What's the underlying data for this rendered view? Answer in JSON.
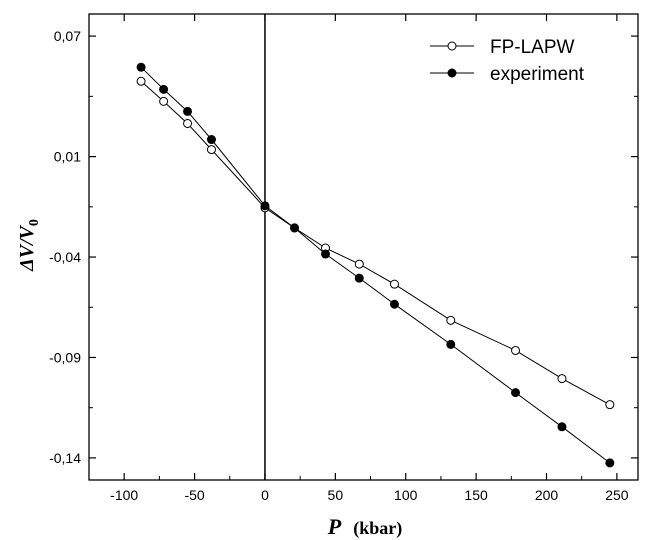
{
  "chart_data": {
    "type": "line",
    "title": "",
    "xlabel": "P",
    "xlabel_unit": "(kbar)",
    "ylabel": "ΔV/V",
    "ylabel_sub": "0",
    "xlim": [
      -125,
      265
    ],
    "ylim": [
      -0.151,
      0.081
    ],
    "x_ticks": [
      -100,
      -50,
      0,
      50,
      100,
      150,
      200,
      250
    ],
    "x_tick_labels": [
      "-100",
      "-50",
      "0",
      "50",
      "100",
      "150",
      "200",
      "250"
    ],
    "y_ticks": [
      0.07,
      0.01,
      -0.04,
      -0.09,
      -0.14
    ],
    "y_tick_labels": [
      "0,07",
      "0,01",
      "-0,04",
      "-0,09",
      "-0,14"
    ],
    "vertical_line_at_x": 0,
    "grid": false,
    "legend_position": "top-right",
    "series": [
      {
        "name": "FP-LAPW",
        "marker": "open-circle",
        "x": [
          -88,
          -72,
          -55,
          -38,
          0,
          21,
          43,
          67,
          92,
          132,
          178,
          211,
          245
        ],
        "y": [
          0.0475,
          0.0375,
          0.0265,
          0.0135,
          -0.0155,
          -0.0255,
          -0.0355,
          -0.0435,
          -0.0535,
          -0.0715,
          -0.0865,
          -0.1005,
          -0.1135
        ]
      },
      {
        "name": "experiment",
        "marker": "filled-circle",
        "x": [
          -88,
          -72,
          -55,
          -38,
          0,
          21,
          43,
          67,
          92,
          132,
          178,
          211,
          245
        ],
        "y": [
          0.0545,
          0.0435,
          0.0325,
          0.0185,
          -0.0145,
          -0.0255,
          -0.0385,
          -0.0505,
          -0.0635,
          -0.0835,
          -0.1075,
          -0.1245,
          -0.1425
        ]
      }
    ]
  }
}
